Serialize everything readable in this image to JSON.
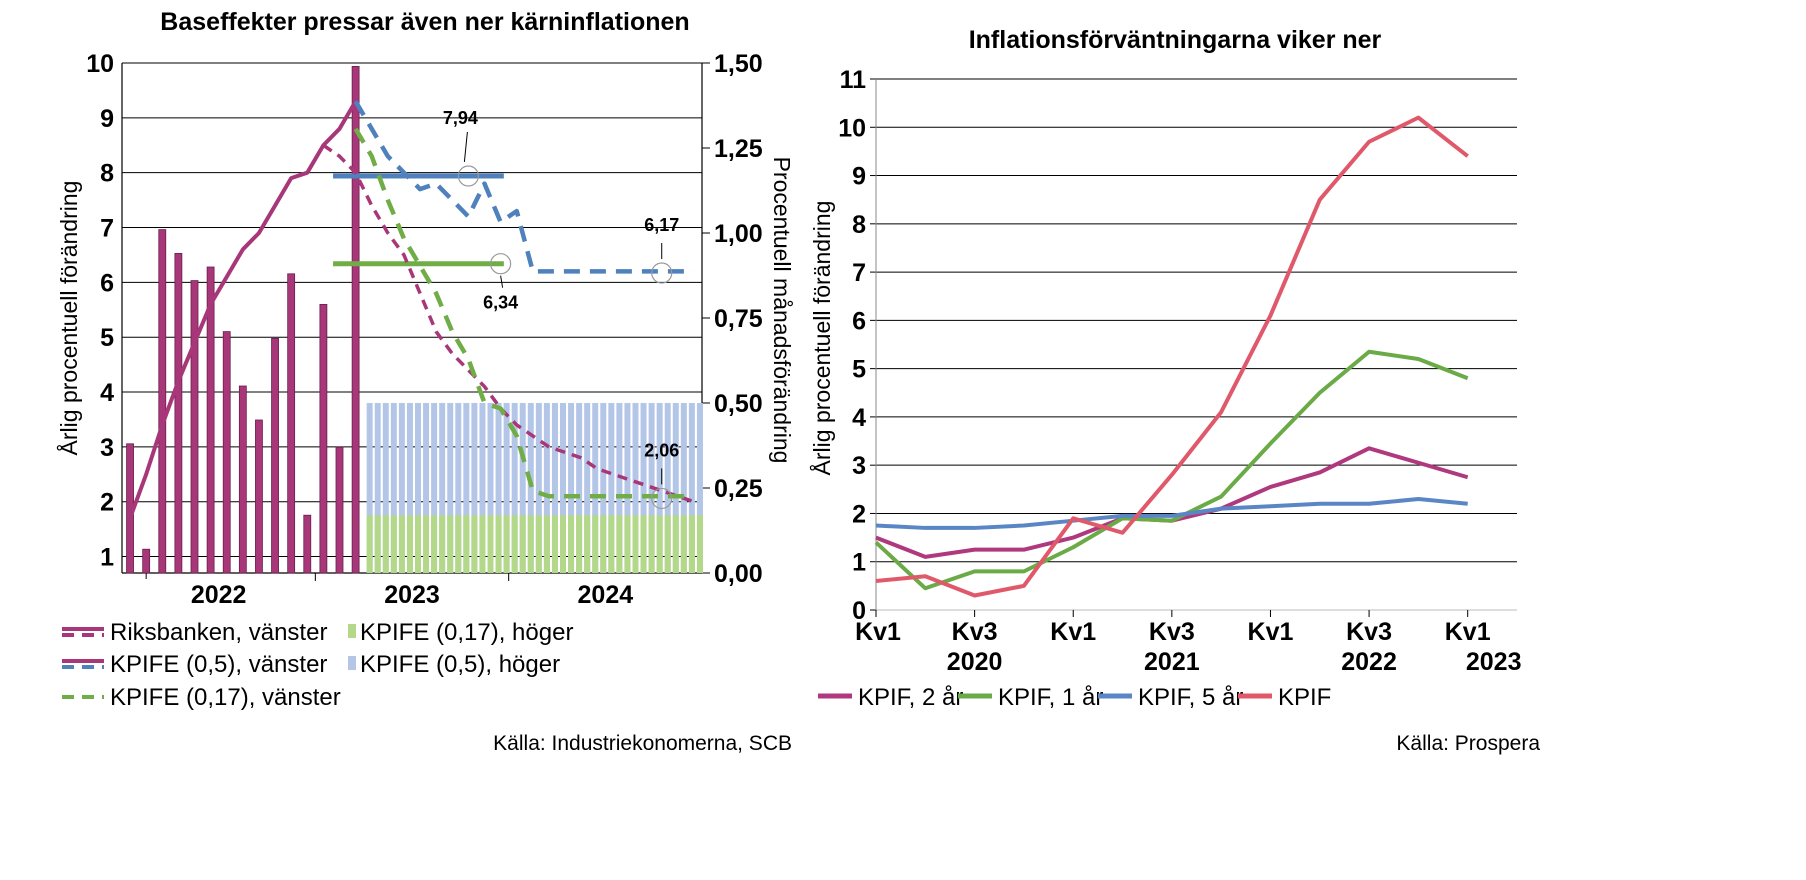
{
  "chart_data": [
    {
      "type": "bar+line",
      "title": "Baseffekter pressar även ner kärninflationen",
      "ylabel_left": "Årlig procentuell förändring",
      "ylabel_right": "Procentuell månadsförändring",
      "ylim_left": [
        0.7,
        10
      ],
      "ylim_right": [
        0,
        1.5
      ],
      "yticks_left": [
        "1",
        "2",
        "3",
        "4",
        "5",
        "6",
        "7",
        "8",
        "9",
        "10"
      ],
      "yticks_right": [
        "0,00",
        "0,25",
        "0,50",
        "0,75",
        "1,00",
        "1,25",
        "1,50"
      ],
      "x_period_labels": [
        "2022",
        "2023",
        "2024"
      ],
      "months_from": "2022-01",
      "months_to": "2024-12",
      "grid": true,
      "bars_monthly_right_axis": [
        0.38,
        0.07,
        1.01,
        0.94,
        0.86,
        0.9,
        0.71,
        0.55,
        0.45,
        0.69,
        0.88,
        0.17,
        0.79,
        0.37,
        1.49
      ],
      "bars_projection_05_right": {
        "name": "KPIFE (0,5), höger",
        "from": "2023-04",
        "to": "2024-12",
        "value": 0.5
      },
      "bars_projection_017_right": {
        "name": "KPIFE (0,17), höger",
        "from": "2023-04",
        "to": "2024-12",
        "value": 0.17
      },
      "series": [
        {
          "name": "KPIFE (0,5), vänster",
          "style": "solid",
          "color": "#a8377a",
          "x": [
            "2022-01",
            "2022-02",
            "2022-03",
            "2022-04",
            "2022-05",
            "2022-06",
            "2022-07",
            "2022-08",
            "2022-09",
            "2022-10",
            "2022-11",
            "2022-12",
            "2023-01",
            "2023-02",
            "2023-03"
          ],
          "values": [
            1.7,
            2.5,
            3.4,
            4.2,
            4.9,
            5.6,
            6.1,
            6.6,
            6.9,
            7.4,
            7.9,
            8.0,
            8.5,
            8.8,
            9.3
          ]
        },
        {
          "name": "Riksbanken, vänster",
          "style": "dashed",
          "color": "#a8377a",
          "x": [
            "2023-01",
            "2023-02",
            "2023-03",
            "2023-04",
            "2023-05",
            "2023-06",
            "2023-07",
            "2023-08",
            "2023-09",
            "2023-10",
            "2023-11",
            "2023-12",
            "2024-01",
            "2024-02",
            "2024-03",
            "2024-04",
            "2024-05",
            "2024-06",
            "2024-07",
            "2024-08",
            "2024-09",
            "2024-10",
            "2024-11",
            "2024-12"
          ],
          "values": [
            8.5,
            8.3,
            8.0,
            7.4,
            6.9,
            6.5,
            5.8,
            5.1,
            4.7,
            4.4,
            4.1,
            3.7,
            3.4,
            3.2,
            3.0,
            2.9,
            2.8,
            2.6,
            2.5,
            2.4,
            2.3,
            2.2,
            2.1,
            2.0
          ]
        },
        {
          "name": "KPIFE (0,5), vänster",
          "style": "dashed",
          "color": "#4f81bd",
          "x": [
            "2023-03",
            "2023-04",
            "2023-05",
            "2023-06",
            "2023-07",
            "2023-08",
            "2023-09",
            "2023-10",
            "2023-11",
            "2023-12",
            "2024-01",
            "2024-02",
            "2024-03",
            "2024-04",
            "2024-05",
            "2024-06",
            "2024-07",
            "2024-08",
            "2024-09",
            "2024-10",
            "2024-11",
            "2024-12"
          ],
          "values": [
            9.3,
            8.8,
            8.3,
            8.0,
            7.7,
            7.8,
            7.5,
            7.2,
            7.8,
            7.1,
            7.3,
            6.2,
            6.2,
            6.2,
            6.2,
            6.2,
            6.2,
            6.2,
            6.2,
            6.2,
            6.2,
            6.2
          ]
        },
        {
          "name": "KPIFE (0,17), vänster",
          "style": "dashed",
          "color": "#70ad47",
          "x": [
            "2023-03",
            "2023-04",
            "2023-05",
            "2023-06",
            "2023-07",
            "2023-08",
            "2023-09",
            "2023-10",
            "2023-11",
            "2023-12",
            "2024-01",
            "2024-02",
            "2024-03",
            "2024-04",
            "2024-05",
            "2024-06",
            "2024-07",
            "2024-08",
            "2024-09",
            "2024-10",
            "2024-11",
            "2024-12"
          ],
          "values": [
            8.8,
            8.3,
            7.5,
            6.8,
            6.3,
            5.8,
            5.1,
            4.6,
            3.8,
            3.7,
            3.2,
            2.2,
            2.1,
            2.1,
            2.1,
            2.1,
            2.1,
            2.1,
            2.1,
            2.1,
            2.1,
            2.1
          ]
        }
      ],
      "average_lines": [
        {
          "name": "KPIFE (0,5)",
          "color": "#4f81bd",
          "value": 7.94,
          "from": "2023-01",
          "to": "2023-12"
        },
        {
          "name": "KPIFE (0,17)",
          "color": "#70ad47",
          "value": 6.34,
          "from": "2023-01",
          "to": "2023-12"
        }
      ],
      "annotations": [
        {
          "text": "7,94",
          "x": "2023-10",
          "y": 7.94
        },
        {
          "text": "6,34",
          "x": "2023-12",
          "y": 6.34
        },
        {
          "text": "6,17",
          "x": "2024-10",
          "y": 6.17
        },
        {
          "text": "2,06",
          "x": "2024-10",
          "y": 2.06
        }
      ],
      "legend": {
        "placement": "bottom",
        "entries": [
          {
            "label": "Riksbanken, vänster",
            "style": "solid-dashed",
            "color": "#a8377a"
          },
          {
            "label": "KPIFE (0,17), höger",
            "style": "bar",
            "color": "#b4d88a"
          },
          {
            "label": "KPIFE (0,5), vänster",
            "style": "solid-dashed",
            "color": "#a8377a",
            "color2": "#4f81bd"
          },
          {
            "label": "KPIFE (0,5), höger",
            "style": "bar",
            "color": "#b4c6e7"
          },
          {
            "label": "KPIFE (0,17), vänster",
            "style": "dashed",
            "color": "#70ad47"
          }
        ]
      },
      "source": "Källa: Industriekonomerna, SCB"
    },
    {
      "type": "line",
      "title": "Inflationsförväntningarna viker ner",
      "ylabel": "Årlig procentuell förändring",
      "ylim": [
        0,
        11
      ],
      "yticks": [
        "0",
        "1",
        "2",
        "3",
        "4",
        "5",
        "6",
        "7",
        "8",
        "9",
        "10",
        "11"
      ],
      "xlim": [
        0,
        13
      ],
      "x_tick_labels": [
        {
          "pos": 0,
          "line1": "Kv1",
          "line2": ""
        },
        {
          "pos": 2,
          "line1": "Kv3",
          "line2": "2020"
        },
        {
          "pos": 4,
          "line1": "Kv1",
          "line2": ""
        },
        {
          "pos": 6,
          "line1": "Kv3",
          "line2": "2021"
        },
        {
          "pos": 8,
          "line1": "Kv1",
          "line2": ""
        },
        {
          "pos": 10,
          "line1": "Kv3",
          "line2": "2022"
        },
        {
          "pos": 12,
          "line1": "Kv1",
          "line2": "2023"
        }
      ],
      "grid": true,
      "x": [
        0,
        1,
        2,
        3,
        4,
        5,
        6,
        7,
        8,
        9,
        10,
        11,
        12,
        13
      ],
      "series": [
        {
          "name": "KPIF, 2 år",
          "color": "#b0387e",
          "values": [
            1.5,
            1.1,
            1.25,
            1.25,
            1.5,
            1.9,
            1.85,
            2.1,
            2.55,
            2.85,
            3.35,
            3.05,
            2.75,
            null
          ]
        },
        {
          "name": "KPIF, 1 år",
          "color": "#6aab47",
          "values": [
            1.4,
            0.45,
            0.8,
            0.8,
            1.3,
            1.9,
            1.85,
            2.35,
            3.45,
            4.5,
            5.35,
            5.2,
            4.8,
            null
          ]
        },
        {
          "name": "KPIF, 5 år",
          "color": "#5b86c6",
          "values": [
            1.75,
            1.7,
            1.7,
            1.75,
            1.85,
            1.95,
            1.95,
            2.1,
            2.15,
            2.2,
            2.2,
            2.3,
            2.2,
            null
          ]
        },
        {
          "name": "KPIF",
          "color": "#e0596a",
          "values": [
            0.6,
            0.7,
            0.3,
            0.5,
            1.9,
            1.6,
            2.8,
            4.1,
            6.1,
            8.5,
            9.7,
            10.2,
            9.4,
            null
          ]
        }
      ],
      "legend": {
        "placement": "bottom"
      },
      "source": "Källa: Prospera"
    }
  ]
}
